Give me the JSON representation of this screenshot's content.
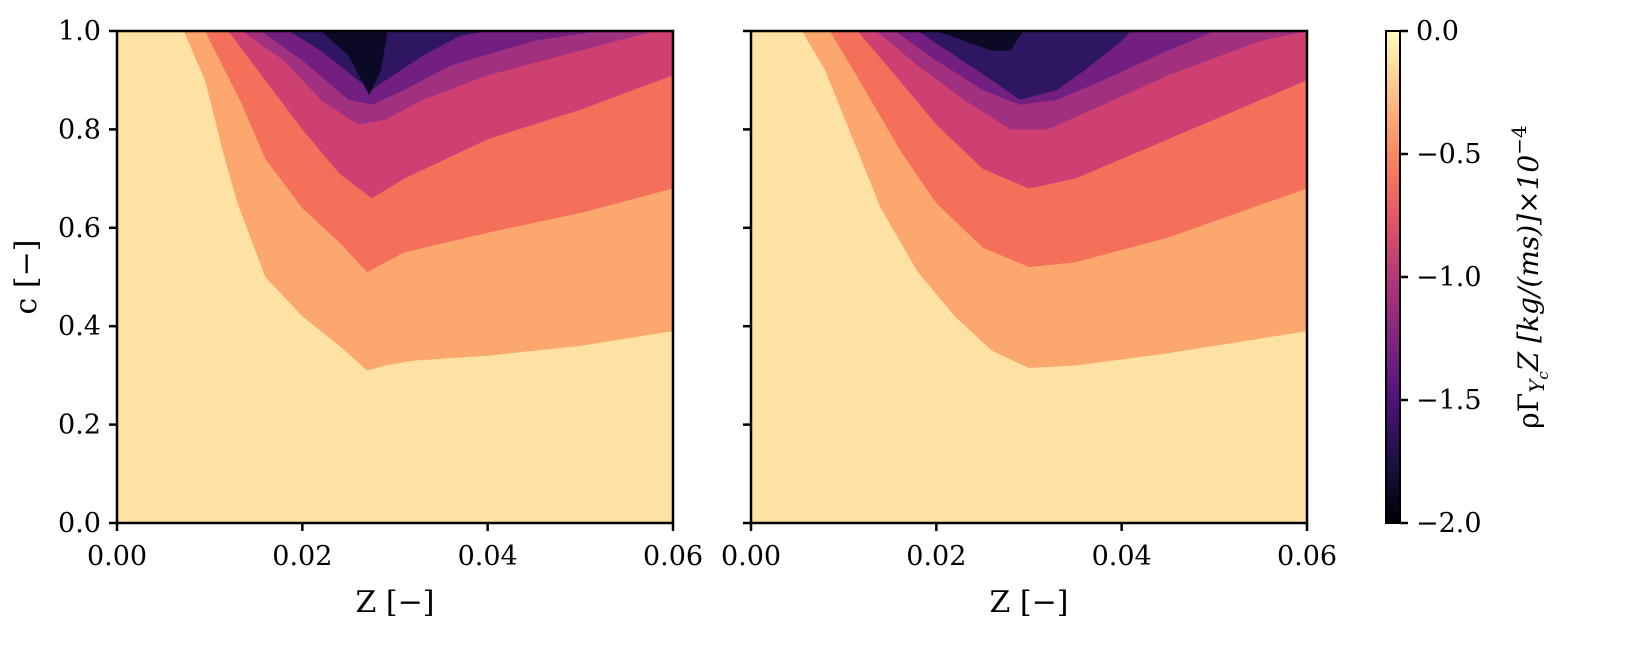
{
  "chart_data": [
    {
      "type": "filled-contour",
      "xlabel": "Z [−]",
      "ylabel": "c [−]",
      "xlim": [
        0.0,
        0.06
      ],
      "ylim": [
        0.0,
        1.0
      ],
      "x_ticks": [
        "0.00",
        "0.02",
        "0.04",
        "0.06"
      ],
      "y_ticks": [
        "0.0",
        "0.2",
        "0.4",
        "0.6",
        "0.8",
        "1.0"
      ],
      "y_tick_values": [
        0.0,
        0.2,
        0.4,
        0.6,
        0.8,
        1.0
      ],
      "x_tick_values": [
        0.0,
        0.02,
        0.04,
        0.06
      ],
      "contours": [
        {
          "level": -0.25,
          "color": "#fca76e",
          "points": [
            [
              0.0072,
              1.0
            ],
            [
              0.0095,
              0.9
            ],
            [
              0.0115,
              0.75
            ],
            [
              0.013,
              0.65
            ],
            [
              0.016,
              0.5
            ],
            [
              0.02,
              0.42
            ],
            [
              0.024,
              0.36
            ],
            [
              0.027,
              0.31
            ],
            [
              0.029,
              0.32
            ],
            [
              0.032,
              0.33
            ],
            [
              0.04,
              0.34
            ],
            [
              0.05,
              0.36
            ],
            [
              0.06,
              0.39
            ]
          ]
        },
        {
          "level": -0.5,
          "color": "#f4705a",
          "points": [
            [
              0.0095,
              1.0
            ],
            [
              0.0135,
              0.85
            ],
            [
              0.016,
              0.74
            ],
            [
              0.02,
              0.64
            ],
            [
              0.024,
              0.57
            ],
            [
              0.027,
              0.51
            ],
            [
              0.029,
              0.53
            ],
            [
              0.031,
              0.55
            ],
            [
              0.04,
              0.59
            ],
            [
              0.05,
              0.63
            ],
            [
              0.06,
              0.68
            ]
          ]
        },
        {
          "level": -0.75,
          "color": "#cd4071",
          "points": [
            [
              0.012,
              1.0
            ],
            [
              0.016,
              0.9
            ],
            [
              0.02,
              0.8
            ],
            [
              0.024,
              0.71
            ],
            [
              0.0275,
              0.66
            ],
            [
              0.031,
              0.7
            ],
            [
              0.04,
              0.78
            ],
            [
              0.05,
              0.84
            ],
            [
              0.06,
              0.91
            ]
          ]
        },
        {
          "level": -1.0,
          "color": "#a1307e",
          "points": [
            [
              0.0135,
              1.0
            ],
            [
              0.018,
              0.94
            ],
            [
              0.022,
              0.86
            ],
            [
              0.026,
              0.81
            ],
            [
              0.029,
              0.82
            ],
            [
              0.033,
              0.86
            ],
            [
              0.04,
              0.91
            ],
            [
              0.05,
              0.96
            ],
            [
              0.058,
              1.0
            ]
          ]
        },
        {
          "level": -1.25,
          "color": "#721f81",
          "points": [
            [
              0.0155,
              1.0
            ],
            [
              0.02,
              0.94
            ],
            [
              0.025,
              0.86
            ],
            [
              0.0275,
              0.85
            ],
            [
              0.031,
              0.88
            ],
            [
              0.036,
              0.93
            ],
            [
              0.045,
              0.98
            ],
            [
              0.052,
              1.0
            ]
          ]
        },
        {
          "level": -1.5,
          "color": "#2e1660",
          "points": [
            [
              0.0185,
              1.0
            ],
            [
              0.022,
              0.96
            ],
            [
              0.026,
              0.9
            ],
            [
              0.0275,
              0.88
            ],
            [
              0.029,
              0.9
            ],
            [
              0.033,
              0.95
            ],
            [
              0.037,
              0.99
            ],
            [
              0.04,
              1.0
            ]
          ]
        },
        {
          "level": -1.75,
          "color": "#0c0926",
          "points": [
            [
              0.022,
              1.0
            ],
            [
              0.025,
              0.95
            ],
            [
              0.0272,
              0.87
            ],
            [
              0.0285,
              0.92
            ],
            [
              0.0292,
              1.0
            ]
          ]
        }
      ]
    },
    {
      "type": "filled-contour",
      "xlabel": "Z [−]",
      "ylabel": "",
      "xlim": [
        0.0,
        0.06
      ],
      "ylim": [
        0.0,
        1.0
      ],
      "x_ticks": [
        "0.00",
        "0.02",
        "0.04",
        "0.06"
      ],
      "x_tick_values": [
        0.0,
        0.02,
        0.04,
        0.06
      ],
      "y_tick_values": [
        0.0,
        0.2,
        0.4,
        0.6,
        0.8,
        1.0
      ],
      "contours": [
        {
          "level": -0.25,
          "color": "#fca76e",
          "points": [
            [
              0.0055,
              1.0
            ],
            [
              0.008,
              0.92
            ],
            [
              0.011,
              0.78
            ],
            [
              0.014,
              0.64
            ],
            [
              0.018,
              0.51
            ],
            [
              0.022,
              0.42
            ],
            [
              0.026,
              0.35
            ],
            [
              0.03,
              0.315
            ],
            [
              0.035,
              0.32
            ],
            [
              0.045,
              0.345
            ],
            [
              0.06,
              0.39
            ]
          ]
        },
        {
          "level": -0.5,
          "color": "#f4705a",
          "points": [
            [
              0.0085,
              1.0
            ],
            [
              0.012,
              0.89
            ],
            [
              0.016,
              0.76
            ],
            [
              0.02,
              0.65
            ],
            [
              0.025,
              0.56
            ],
            [
              0.03,
              0.52
            ],
            [
              0.035,
              0.53
            ],
            [
              0.045,
              0.58
            ],
            [
              0.06,
              0.68
            ]
          ]
        },
        {
          "level": -0.75,
          "color": "#cd4071",
          "points": [
            [
              0.0115,
              1.0
            ],
            [
              0.016,
              0.9
            ],
            [
              0.02,
              0.81
            ],
            [
              0.025,
              0.72
            ],
            [
              0.03,
              0.68
            ],
            [
              0.035,
              0.7
            ],
            [
              0.045,
              0.78
            ],
            [
              0.06,
              0.9
            ]
          ]
        },
        {
          "level": -1.0,
          "color": "#a1307e",
          "points": [
            [
              0.0135,
              1.0
            ],
            [
              0.018,
              0.93
            ],
            [
              0.023,
              0.86
            ],
            [
              0.028,
              0.8
            ],
            [
              0.032,
              0.8
            ],
            [
              0.038,
              0.85
            ],
            [
              0.045,
              0.91
            ],
            [
              0.055,
              0.98
            ],
            [
              0.06,
              1.0
            ]
          ]
        },
        {
          "level": -1.25,
          "color": "#721f81",
          "points": [
            [
              0.0155,
              1.0
            ],
            [
              0.02,
              0.94
            ],
            [
              0.025,
              0.88
            ],
            [
              0.029,
              0.85
            ],
            [
              0.033,
              0.86
            ],
            [
              0.038,
              0.9
            ],
            [
              0.045,
              0.96
            ],
            [
              0.05,
              1.0
            ]
          ]
        },
        {
          "level": -1.5,
          "color": "#2e1660",
          "points": [
            [
              0.018,
              1.0
            ],
            [
              0.022,
              0.95
            ],
            [
              0.026,
              0.9
            ],
            [
              0.029,
              0.86
            ],
            [
              0.033,
              0.88
            ],
            [
              0.036,
              0.92
            ],
            [
              0.04,
              0.98
            ],
            [
              0.041,
              1.0
            ]
          ]
        },
        {
          "level": -1.75,
          "color": "#0c0926",
          "points": [
            [
              0.02,
              1.0
            ],
            [
              0.023,
              0.98
            ],
            [
              0.026,
              0.96
            ],
            [
              0.028,
              0.96
            ],
            [
              0.029,
              0.99
            ],
            [
              0.0295,
              1.0
            ]
          ]
        }
      ]
    }
  ],
  "colorbar": {
    "label": "ρΓ",
    "label_sub": "Y",
    "label_subsub": "c",
    "label_rest": "Z  [kg/(ms)]×10",
    "label_exp": "−4",
    "range": [
      -2.0,
      0.0
    ],
    "ticks": [
      "0.0",
      "−0.5",
      "−1.0",
      "−1.5",
      "−2.0"
    ],
    "tick_values": [
      0.0,
      -0.5,
      -1.0,
      -1.5,
      -2.0
    ],
    "colors": [
      "#000004",
      "#1c1044",
      "#4f127b",
      "#812581",
      "#b5367a",
      "#e55964",
      "#fb8761",
      "#fec287",
      "#fcfdbf"
    ],
    "background_color": "#fde2a3"
  }
}
